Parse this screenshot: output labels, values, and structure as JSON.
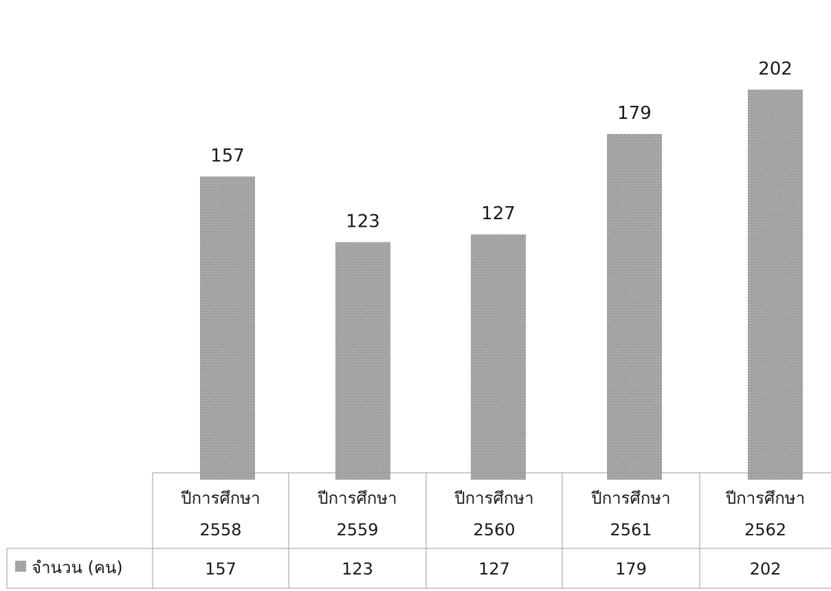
{
  "chart_data": {
    "type": "bar",
    "categories": [
      [
        "ปีการศึกษา",
        "2558"
      ],
      [
        "ปีการศึกษา",
        "2559"
      ],
      [
        "ปีการศึกษา",
        "2560"
      ],
      [
        "ปีการศึกษา",
        "2561"
      ],
      [
        "ปีการศึกษา",
        "2562"
      ]
    ],
    "series": [
      {
        "name": "จำนวน (คน)",
        "values": [
          157,
          123,
          127,
          179,
          202
        ]
      }
    ],
    "data_labels": [
      "157",
      "123",
      "127",
      "179",
      "202"
    ],
    "table_values": [
      "157",
      "123",
      "127",
      "179",
      "202"
    ],
    "ylim": [
      0,
      210
    ],
    "grid": false,
    "legend_position": "data-table",
    "colors": {
      "bar": "#a9a9a9",
      "bar_dark": "#8f8f8f",
      "table_border": "#9a9a9a"
    }
  }
}
